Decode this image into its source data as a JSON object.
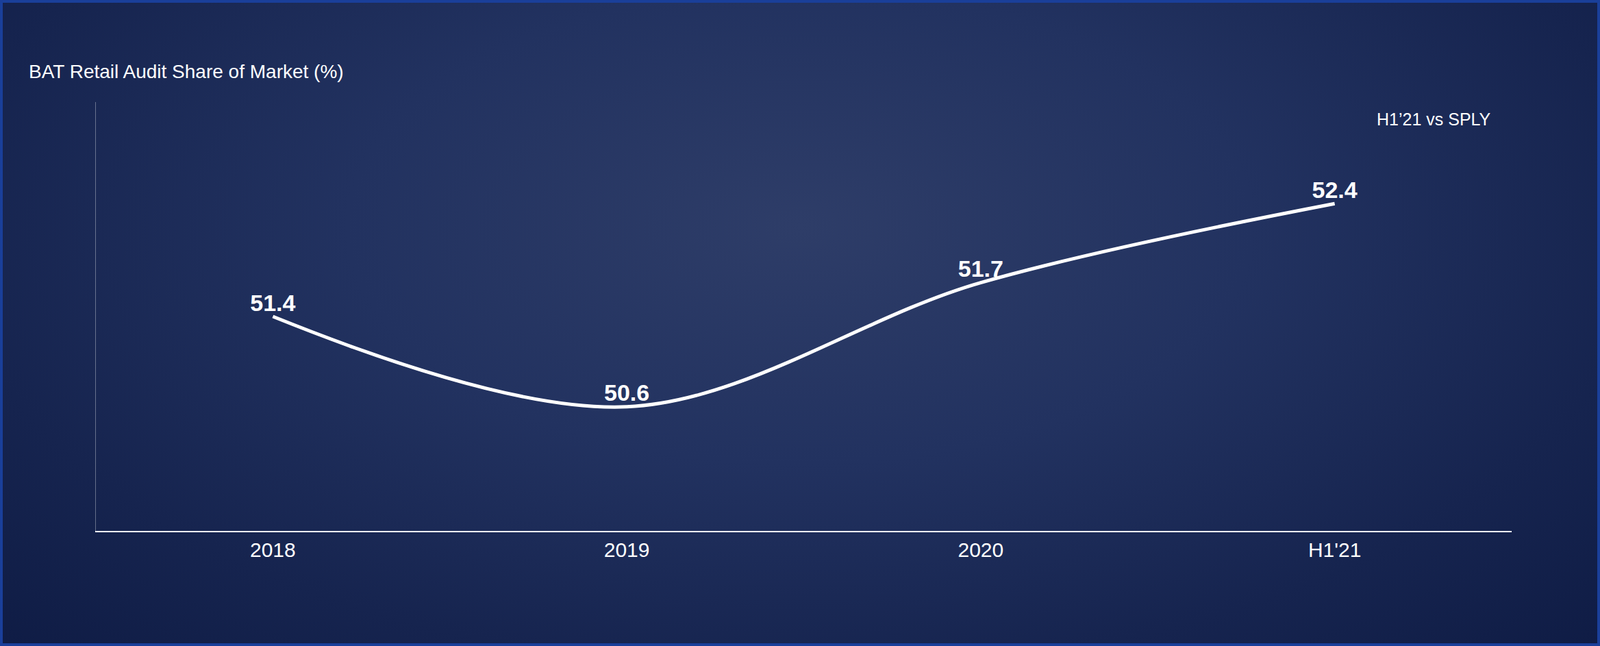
{
  "chart_data": {
    "type": "line",
    "title": "BAT Retail Audit Share of Market (%)",
    "annotations": [
      "H1’21 vs SPLY"
    ],
    "categories": [
      "2018",
      "2019",
      "2020",
      "H1'21"
    ],
    "values": [
      51.4,
      50.6,
      51.7,
      52.4
    ],
    "color": "#ffffff",
    "ylim": [
      49.5,
      53.3
    ],
    "yticks": [],
    "grid": false,
    "data_labels": true,
    "tick_labels": "x",
    "line_style": "spline"
  }
}
